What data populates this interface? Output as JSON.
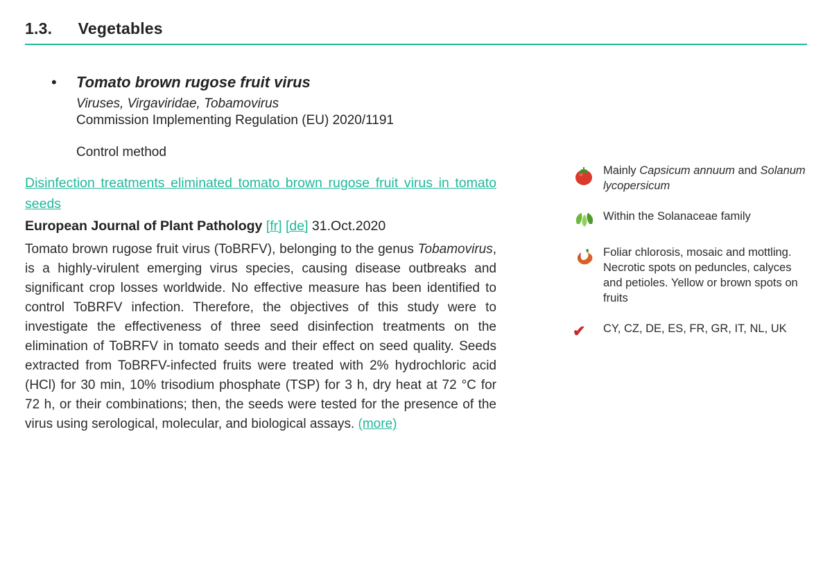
{
  "section": {
    "number": "1.3.",
    "title": "Vegetables"
  },
  "entry": {
    "species": "Tomato brown rugose fruit virus",
    "taxonomy": "Viruses, Virgaviridae, Tobamovirus",
    "regulation": "Commission Implementing Regulation (EU) 2020/1191",
    "control_label": "Control method",
    "article_link": "Disinfection treatments eliminated tomato brown rugose fruit virus in tomato seeds",
    "journal": "European Journal of Plant Pathology",
    "lang_fr": "[fr]",
    "lang_de": "[de]",
    "date": "31.Oct.2020",
    "abstract_html": "Tomato brown rugose fruit virus (ToBRFV), belonging to the genus <em>Tobamovirus</em>, is a highly-virulent emerging virus species, causing disease outbreaks and significant crop losses worldwide. No effective measure has been identified to control ToBRFV infection. Therefore, the objectives of this study were to investigate the effectiveness of three seed disinfection treatments on the elimination of ToBRFV in tomato seeds and their effect on seed quality. Seeds extracted from ToBRFV-infected fruits were treated with 2% hydrochloric acid (HCl) for 30 min, 10% trisodium phosphate (TSP) for 3 h, dry heat at 72 °C for 72 h, or their combinations; then, the seeds were tested for the presence of the virus using serological, molecular, and biological assays.",
    "more": "(more)"
  },
  "sidebar": {
    "host_html": "Mainly <em>Capsicum annuum</em> and <em>Solanum lycopersicum</em>",
    "family": "Within the Solanaceae family",
    "symptoms": "Foliar chlorosis, mosaic and mottling. Necrotic spots on peduncles, calyces and petioles. Yellow or brown spots on fruits",
    "countries": "CY, CZ, DE, ES, FR, GR, IT, NL, UK"
  },
  "colors": {
    "accent": "#1fb89a"
  }
}
